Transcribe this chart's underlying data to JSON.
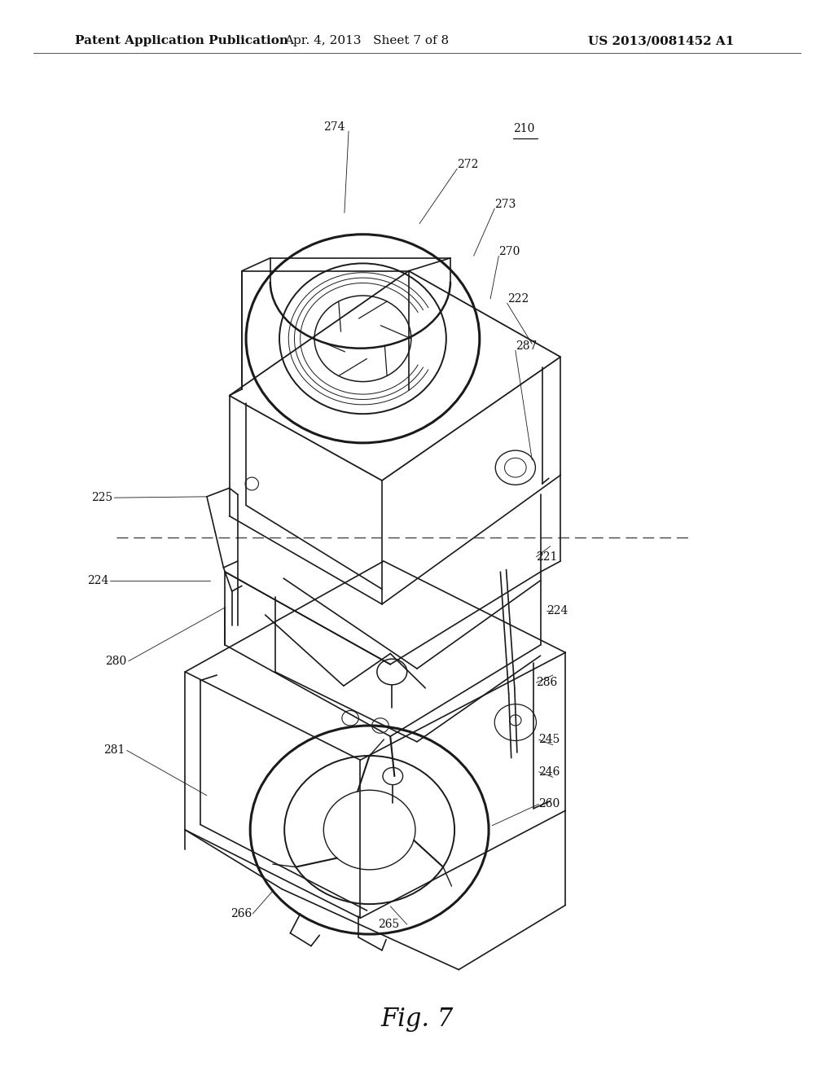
{
  "background_color": "#ffffff",
  "header_left": "Patent Application Publication",
  "header_center": "Apr. 4, 2013   Sheet 7 of 8",
  "header_right": "US 2013/0081452 A1",
  "figure_label": "Fig. 7",
  "figure_label_fontsize": 22,
  "header_fontsize": 11,
  "line_color": "#1a1a1a",
  "label_fontsize": 10,
  "label_color": "#111111"
}
